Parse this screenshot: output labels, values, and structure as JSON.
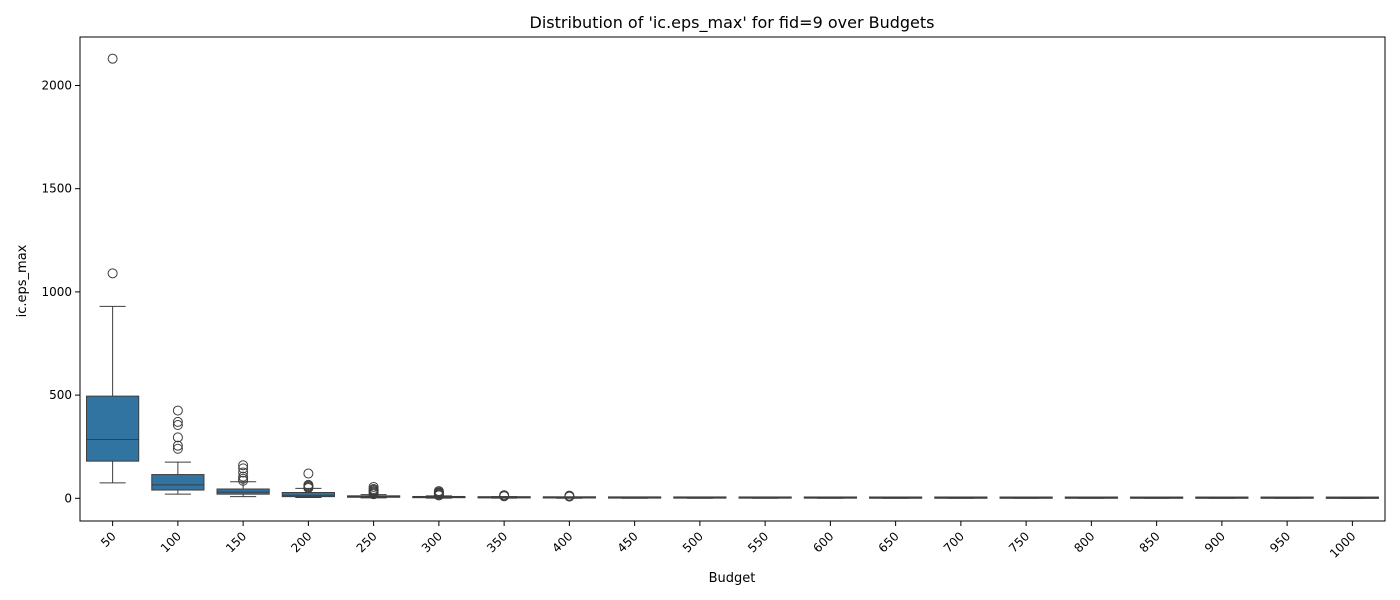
{
  "chart_data": {
    "type": "box",
    "title": "Distribution of 'ic.eps_max' for fid=9 over Budgets",
    "xlabel": "Budget",
    "ylabel": "ic.eps_max",
    "ylim": [
      -110,
      2235
    ],
    "yticks": [
      0,
      500,
      1000,
      1500,
      2000
    ],
    "grid": false,
    "box_color": "#3274a1",
    "categories": [
      "50",
      "100",
      "150",
      "200",
      "250",
      "300",
      "350",
      "400",
      "450",
      "500",
      "550",
      "600",
      "650",
      "700",
      "750",
      "800",
      "850",
      "900",
      "950",
      "1000"
    ],
    "boxes": [
      {
        "budget": "50",
        "whisker_low": 75,
        "q1": 180,
        "median": 285,
        "q3": 495,
        "whisker_high": 930,
        "outliers": [
          1090,
          2130
        ]
      },
      {
        "budget": "100",
        "whisker_low": 20,
        "q1": 40,
        "median": 65,
        "q3": 115,
        "whisker_high": 175,
        "outliers": [
          240,
          255,
          295,
          355,
          370,
          425
        ]
      },
      {
        "budget": "150",
        "whisker_low": 8,
        "q1": 20,
        "median": 30,
        "q3": 45,
        "whisker_high": 80,
        "outliers": [
          85,
          95,
          105,
          125,
          145,
          160
        ]
      },
      {
        "budget": "200",
        "whisker_low": 4,
        "q1": 8,
        "median": 15,
        "q3": 28,
        "whisker_high": 48,
        "outliers": [
          50,
          55,
          60,
          65,
          120
        ]
      },
      {
        "budget": "250",
        "whisker_low": 2,
        "q1": 5,
        "median": 8,
        "q3": 12,
        "whisker_high": 18,
        "outliers": [
          20,
          25,
          30,
          35,
          40,
          45,
          55
        ]
      },
      {
        "budget": "300",
        "whisker_low": 1,
        "q1": 3,
        "median": 5,
        "q3": 8,
        "whisker_high": 12,
        "outliers": [
          14,
          18,
          22,
          26,
          30,
          35
        ]
      },
      {
        "budget": "350",
        "whisker_low": 1,
        "q1": 2,
        "median": 3,
        "q3": 5,
        "whisker_high": 8,
        "outliers": [
          10,
          12,
          15
        ]
      },
      {
        "budget": "400",
        "whisker_low": 0.5,
        "q1": 1.5,
        "median": 2.5,
        "q3": 4,
        "whisker_high": 6,
        "outliers": [
          8,
          10,
          13
        ]
      },
      {
        "budget": "450",
        "whisker_low": 0.3,
        "q1": 1,
        "median": 1.8,
        "q3": 2.8,
        "whisker_high": 4,
        "outliers": []
      },
      {
        "budget": "500",
        "whisker_low": 0.3,
        "q1": 0.8,
        "median": 1.5,
        "q3": 2.5,
        "whisker_high": 4,
        "outliers": []
      },
      {
        "budget": "550",
        "whisker_low": 0.2,
        "q1": 0.7,
        "median": 1.3,
        "q3": 2.2,
        "whisker_high": 3.5,
        "outliers": []
      },
      {
        "budget": "600",
        "whisker_low": 0.2,
        "q1": 0.6,
        "median": 1.2,
        "q3": 2,
        "whisker_high": 3.2,
        "outliers": []
      },
      {
        "budget": "650",
        "whisker_low": 0.2,
        "q1": 0.5,
        "median": 1.1,
        "q3": 1.8,
        "whisker_high": 3,
        "outliers": []
      },
      {
        "budget": "700",
        "whisker_low": 0.2,
        "q1": 0.5,
        "median": 1,
        "q3": 1.7,
        "whisker_high": 2.8,
        "outliers": []
      },
      {
        "budget": "750",
        "whisker_low": 0.1,
        "q1": 0.4,
        "median": 0.9,
        "q3": 1.6,
        "whisker_high": 2.6,
        "outliers": []
      },
      {
        "budget": "800",
        "whisker_low": 0.1,
        "q1": 0.4,
        "median": 0.8,
        "q3": 1.5,
        "whisker_high": 2.5,
        "outliers": []
      },
      {
        "budget": "850",
        "whisker_low": 0.1,
        "q1": 0.3,
        "median": 0.7,
        "q3": 1.2,
        "whisker_high": 2,
        "outliers": []
      },
      {
        "budget": "900",
        "whisker_low": 0.1,
        "q1": 0.3,
        "median": 0.7,
        "q3": 1.3,
        "whisker_high": 2.2,
        "outliers": []
      },
      {
        "budget": "950",
        "whisker_low": 0.1,
        "q1": 0.3,
        "median": 0.6,
        "q3": 1.1,
        "whisker_high": 1.8,
        "outliers": []
      },
      {
        "budget": "1000",
        "whisker_low": 0.1,
        "q1": 0.2,
        "median": 0.5,
        "q3": 1,
        "whisker_high": 1.6,
        "outliers": []
      }
    ]
  }
}
